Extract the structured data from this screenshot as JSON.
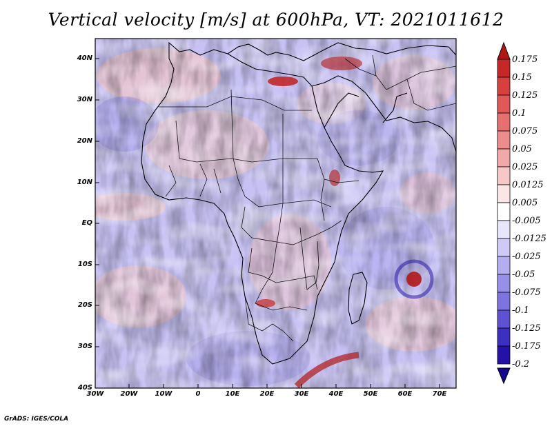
{
  "title": "Vertical velocity [m/s] at 600hPa, VT: 2021011612",
  "credit": "GrADS: IGES/COLA",
  "axes": {
    "lat_labels": [
      "40N",
      "30N",
      "20N",
      "10N",
      "EQ",
      "10S",
      "20S",
      "30S",
      "40S"
    ],
    "lon_labels": [
      "30W",
      "20W",
      "10W",
      "0",
      "10E",
      "20E",
      "30E",
      "40E",
      "50E",
      "60E",
      "70E"
    ]
  },
  "colorbar": {
    "labels": [
      "0.175",
      "0.15",
      "0.125",
      "0.1",
      "0.075",
      "0.05",
      "0.025",
      "0.0125",
      "0.005",
      "-0.005",
      "-0.0125",
      "-0.025",
      "-0.05",
      "-0.075",
      "-0.1",
      "-0.125",
      "-0.175",
      "-0.2"
    ],
    "colors": [
      "#b01818",
      "#c62828",
      "#d84040",
      "#e05858",
      "#e67070",
      "#ec8c8c",
      "#f2a8a8",
      "#f7c8c8",
      "#fbe6e6",
      "#ffffff",
      "#e8e6fb",
      "#cfcaf5",
      "#b4aef0",
      "#9890e8",
      "#7e74e0",
      "#5e52d2",
      "#3c30c0",
      "#2412a8",
      "#140890"
    ]
  },
  "colors": {
    "neg_field": "#b8b2f0",
    "pos_field": "#f0b0b0",
    "strong_pos": "#b01818",
    "strong_neg": "#2412a8",
    "outline": "#000000"
  }
}
